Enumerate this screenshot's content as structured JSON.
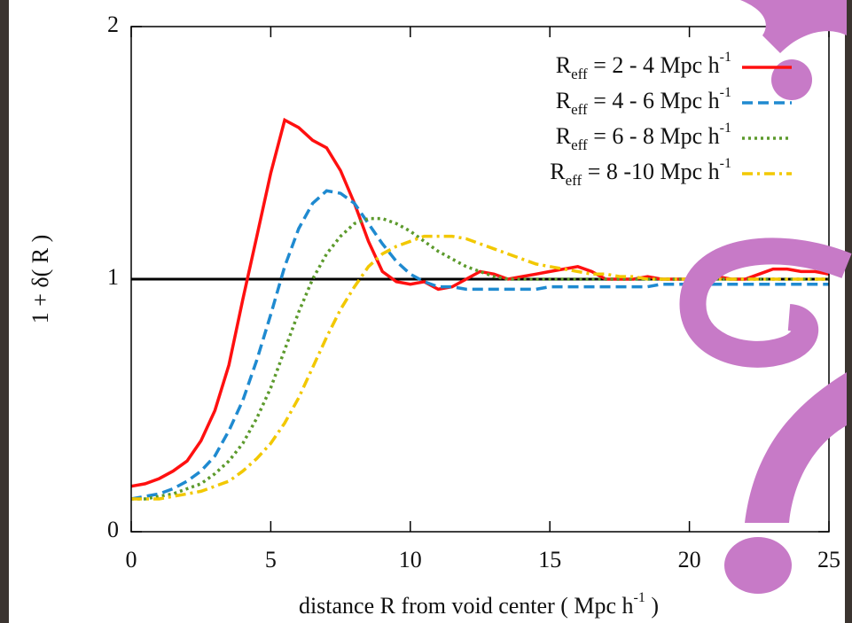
{
  "chart_data": {
    "type": "line",
    "x_label": "distance R from void center ( Mpc h-1 )",
    "y_label": "1 + δ( R )",
    "x": [
      0,
      0.5,
      1,
      1.5,
      2,
      2.5,
      3,
      3.5,
      4,
      4.5,
      5,
      5.5,
      6,
      6.5,
      7,
      7.5,
      8,
      8.5,
      9,
      9.5,
      10,
      10.5,
      11,
      11.5,
      12,
      12.5,
      13,
      13.5,
      14,
      14.5,
      15,
      15.5,
      16,
      16.5,
      17,
      17.5,
      18,
      18.5,
      19,
      19.5,
      20,
      20.5,
      21,
      21.5,
      22,
      22.5,
      23,
      23.5,
      24,
      24.5,
      25
    ],
    "series": [
      {
        "name": "Reff = 2 - 4 Mpc h-1",
        "color": "#ff1010",
        "style": "solid",
        "values": [
          0.18,
          0.19,
          0.21,
          0.24,
          0.28,
          0.36,
          0.48,
          0.66,
          0.92,
          1.17,
          1.42,
          1.63,
          1.6,
          1.55,
          1.52,
          1.43,
          1.3,
          1.15,
          1.03,
          0.99,
          0.98,
          0.99,
          0.96,
          0.97,
          1.0,
          1.03,
          1.02,
          1.0,
          1.01,
          1.02,
          1.03,
          1.04,
          1.05,
          1.03,
          1.0,
          1.0,
          1.0,
          1.01,
          1.0,
          1.0,
          1.0,
          1.0,
          1.01,
          1.0,
          1.0,
          1.02,
          1.04,
          1.04,
          1.03,
          1.03,
          1.02
        ]
      },
      {
        "name": "Reff = 4 - 6 Mpc h-1",
        "color": "#1f8ad0",
        "style": "dashed",
        "values": [
          0.13,
          0.14,
          0.15,
          0.17,
          0.2,
          0.24,
          0.3,
          0.4,
          0.52,
          0.68,
          0.86,
          1.05,
          1.2,
          1.3,
          1.35,
          1.34,
          1.3,
          1.22,
          1.14,
          1.07,
          1.02,
          0.99,
          0.97,
          0.97,
          0.96,
          0.96,
          0.96,
          0.96,
          0.96,
          0.96,
          0.97,
          0.97,
          0.97,
          0.97,
          0.97,
          0.97,
          0.97,
          0.97,
          0.98,
          0.98,
          0.98,
          0.98,
          0.98,
          0.98,
          0.98,
          0.98,
          0.98,
          0.98,
          0.98,
          0.98,
          0.98
        ]
      },
      {
        "name": "Reff = 6 - 8 Mpc h-1",
        "color": "#5c9a2c",
        "style": "dotted",
        "values": [
          0.13,
          0.13,
          0.14,
          0.15,
          0.17,
          0.19,
          0.23,
          0.28,
          0.35,
          0.45,
          0.57,
          0.72,
          0.87,
          1.0,
          1.1,
          1.17,
          1.22,
          1.24,
          1.24,
          1.22,
          1.19,
          1.15,
          1.11,
          1.08,
          1.05,
          1.03,
          1.01,
          1.0,
          1.0,
          1.0,
          1.0,
          1.0,
          1.0,
          1.0,
          1.0,
          1.0,
          1.0,
          1.0,
          1.0,
          1.0,
          1.0,
          1.0,
          1.0,
          1.0,
          1.0,
          1.0,
          1.0,
          1.0,
          1.0,
          1.0,
          1.0
        ]
      },
      {
        "name": "Reff = 8 -10 Mpc h-1",
        "color": "#f2c800",
        "style": "dashdot",
        "values": [
          0.13,
          0.13,
          0.13,
          0.14,
          0.15,
          0.16,
          0.18,
          0.2,
          0.24,
          0.29,
          0.35,
          0.43,
          0.53,
          0.65,
          0.77,
          0.88,
          0.97,
          1.05,
          1.1,
          1.13,
          1.15,
          1.17,
          1.17,
          1.17,
          1.16,
          1.14,
          1.12,
          1.1,
          1.08,
          1.06,
          1.05,
          1.04,
          1.03,
          1.02,
          1.02,
          1.01,
          1.01,
          1.0,
          1.0,
          1.0,
          1.0,
          1.0,
          1.0,
          1.0,
          1.0,
          1.0,
          1.0,
          1.0,
          1.0,
          1.0,
          1.0
        ]
      }
    ],
    "hline": 1,
    "xlim": [
      0,
      25
    ],
    "xticks": [
      0,
      5,
      10,
      15,
      20,
      25
    ],
    "ylim": [
      0,
      2
    ],
    "yticks": [
      0,
      1,
      2
    ],
    "legend": "upper right"
  }
}
